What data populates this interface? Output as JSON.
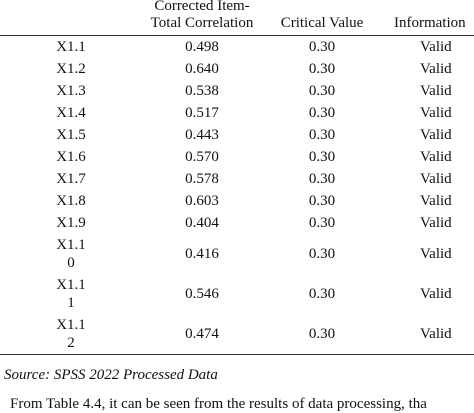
{
  "table": {
    "headers": [
      "Corrected Item-Total Correlation",
      "Critical Value",
      "Information"
    ],
    "rows": [
      [
        "X1.1",
        "0.498",
        "0.30",
        "Valid"
      ],
      [
        "X1.2",
        "0.640",
        "0.30",
        "Valid"
      ],
      [
        "X1.3",
        "0.538",
        "0.30",
        "Valid"
      ],
      [
        "X1.4",
        "0.517",
        "0.30",
        "Valid"
      ],
      [
        "X1.5",
        "0.443",
        "0.30",
        "Valid"
      ],
      [
        "X1.6",
        "0.570",
        "0.30",
        "Valid"
      ],
      [
        "X1.7",
        "0.578",
        "0.30",
        "Valid"
      ],
      [
        "X1.8",
        "0.603",
        "0.30",
        "Valid"
      ],
      [
        "X1.9",
        "0.404",
        "0.30",
        "Valid"
      ],
      [
        "X1.10",
        "0.416",
        "0.30",
        "Valid"
      ],
      [
        "X1.11",
        "0.546",
        "0.30",
        "Valid"
      ],
      [
        "X1.12",
        "0.474",
        "0.30",
        "Valid"
      ]
    ]
  },
  "source": "Source: SPSS 2022 Processed Data",
  "body_text": "From Table 4.4, it can be seen from the results of data processing, tha"
}
